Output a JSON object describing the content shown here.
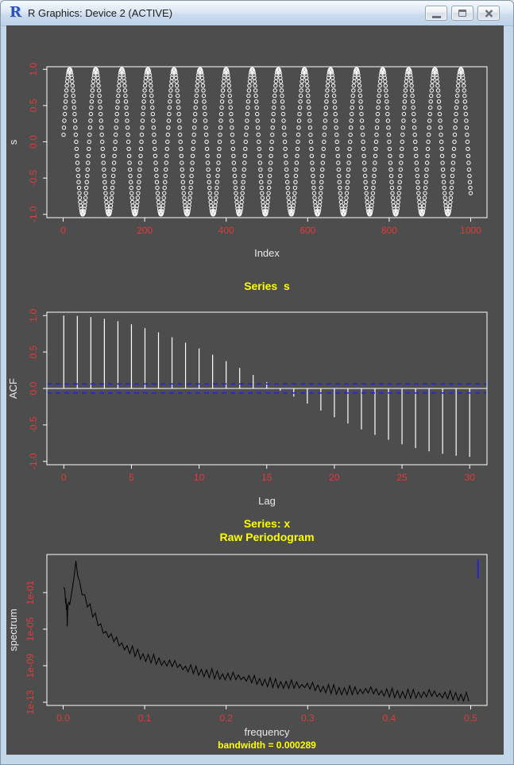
{
  "window": {
    "title": "R Graphics: Device 2 (ACTIVE)",
    "icon": "r-logo-icon",
    "controls": [
      {
        "name": "minimize-button",
        "icon": "minimize-icon"
      },
      {
        "name": "restore-button",
        "icon": "restore-icon"
      },
      {
        "name": "close-button",
        "icon": "close-icon"
      }
    ]
  },
  "theme": {
    "background": "#4d4d4d",
    "axis_color": "#ffffff",
    "tick_label_color": "#e03a3a",
    "axis_title_color": "#e8e8e8",
    "main_title_color": "#ffff00",
    "confidence_blue": "#2323dd",
    "spectrum_line_color": "#000000",
    "marker_color": "#ffffff"
  },
  "chart_data": [
    {
      "type": "scatter",
      "title": "",
      "xlabel": "Index",
      "ylabel": "s",
      "marker": "open-circle",
      "xlim": [
        1,
        1000
      ],
      "ylim": [
        -1,
        1
      ],
      "x_tick_values": [
        0,
        200,
        400,
        600,
        800,
        1000
      ],
      "x_tick_labels": [
        "0",
        "200",
        "400",
        "600",
        "800",
        "1000"
      ],
      "y_tick_values": [
        -1,
        -0.5,
        0,
        0.5,
        1
      ],
      "y_tick_labels": [
        "-1.0",
        "-0.5",
        "0.0",
        "0.5",
        "1.0"
      ],
      "series_formula": "s[t] = sin(2*pi*t/64)",
      "generator": {
        "amplitude": 1,
        "period": 64,
        "t_start": 1,
        "t_end": 1000
      }
    },
    {
      "type": "bar",
      "subtype": "acf",
      "title": "Series  s",
      "xlabel": "Lag",
      "ylabel": "ACF",
      "xlim": [
        0,
        30
      ],
      "ylim": [
        -1,
        1
      ],
      "x_tick_values": [
        0,
        5,
        10,
        15,
        20,
        25,
        30
      ],
      "x_tick_labels": [
        "0",
        "5",
        "10",
        "15",
        "20",
        "25",
        "30"
      ],
      "y_tick_values": [
        -1,
        -0.5,
        0,
        0.5,
        1
      ],
      "y_tick_labels": [
        "-1.0",
        "-0.5",
        "0.0",
        "0.5",
        "1.0"
      ],
      "lags": [
        0,
        1,
        2,
        3,
        4,
        5,
        6,
        7,
        8,
        9,
        10,
        11,
        12,
        13,
        14,
        15,
        16,
        17,
        18,
        19,
        20,
        21,
        22,
        23,
        24,
        25,
        26,
        27,
        28,
        29,
        30
      ],
      "values": [
        1.0,
        0.995,
        0.98,
        0.956,
        0.922,
        0.88,
        0.828,
        0.769,
        0.702,
        0.628,
        0.549,
        0.464,
        0.374,
        0.281,
        0.185,
        0.087,
        -0.03,
        -0.111,
        -0.208,
        -0.303,
        -0.394,
        -0.481,
        -0.562,
        -0.637,
        -0.705,
        -0.766,
        -0.818,
        -0.862,
        -0.897,
        -0.923,
        -0.939
      ],
      "confidence_bound": 0.062,
      "confidence_style": "blue dashed"
    },
    {
      "type": "line",
      "title": "Series: x",
      "subtitle": "Raw Periodogram",
      "xlabel": "frequency",
      "ylabel": "spectrum",
      "annotation": "bandwidth = 0.000289",
      "y_scale": "log10",
      "xlim": [
        0,
        0.5
      ],
      "x_tick_values": [
        0,
        0.1,
        0.2,
        0.3,
        0.4,
        0.5
      ],
      "x_tick_labels": [
        "0.0",
        "0.1",
        "0.2",
        "0.3",
        "0.4",
        "0.5"
      ],
      "y_tick_values": [
        -13,
        -9,
        -5,
        -1
      ],
      "y_tick_labels": [
        "1e-13",
        "1e-09",
        "1e-05",
        "1e-01"
      ],
      "head_points_f_log10": [
        [
          0.001,
          -0.4
        ],
        [
          0.002,
          -0.75
        ],
        [
          0.003,
          -2.2
        ],
        [
          0.0035,
          -1.6
        ],
        [
          0.004,
          -2.9
        ],
        [
          0.0045,
          -2.2
        ],
        [
          0.005,
          -4.7
        ],
        [
          0.0055,
          -3.1
        ],
        [
          0.006,
          -2.35
        ],
        [
          0.007,
          -2.05
        ],
        [
          0.008,
          -2.35
        ],
        [
          0.009,
          -1.8
        ],
        [
          0.01,
          -1.25
        ],
        [
          0.011,
          -0.7
        ],
        [
          0.012,
          -0.15
        ],
        [
          0.013,
          0.45
        ],
        [
          0.014,
          1.2
        ],
        [
          0.015,
          2.0
        ],
        [
          0.0156,
          2.48
        ],
        [
          0.0164,
          1.9
        ],
        [
          0.0172,
          1.3
        ],
        [
          0.018,
          0.8
        ],
        [
          0.019,
          0.5
        ]
      ],
      "skirt": {
        "f_start": 0.02,
        "f_end": 0.5,
        "step": 0.00325,
        "tooth_depth": 0.9,
        "envelope_f_log10": [
          [
            0.02,
            0.35
          ],
          [
            0.024,
            -0.5
          ],
          [
            0.028,
            -1.4
          ],
          [
            0.032,
            -2.1
          ],
          [
            0.04,
            -3.5
          ],
          [
            0.05,
            -4.9
          ],
          [
            0.06,
            -5.7
          ],
          [
            0.08,
            -6.8
          ],
          [
            0.1,
            -7.6
          ],
          [
            0.12,
            -8.2
          ],
          [
            0.15,
            -8.9
          ],
          [
            0.2,
            -9.8
          ],
          [
            0.25,
            -10.4
          ],
          [
            0.3,
            -10.95
          ],
          [
            0.35,
            -11.35
          ],
          [
            0.4,
            -11.6
          ],
          [
            0.45,
            -11.8
          ],
          [
            0.5,
            -12.0
          ]
        ]
      },
      "ci_guide_bar": {
        "f": 0.509,
        "log_top": 2.6,
        "log_bottom": 0.55
      }
    }
  ]
}
